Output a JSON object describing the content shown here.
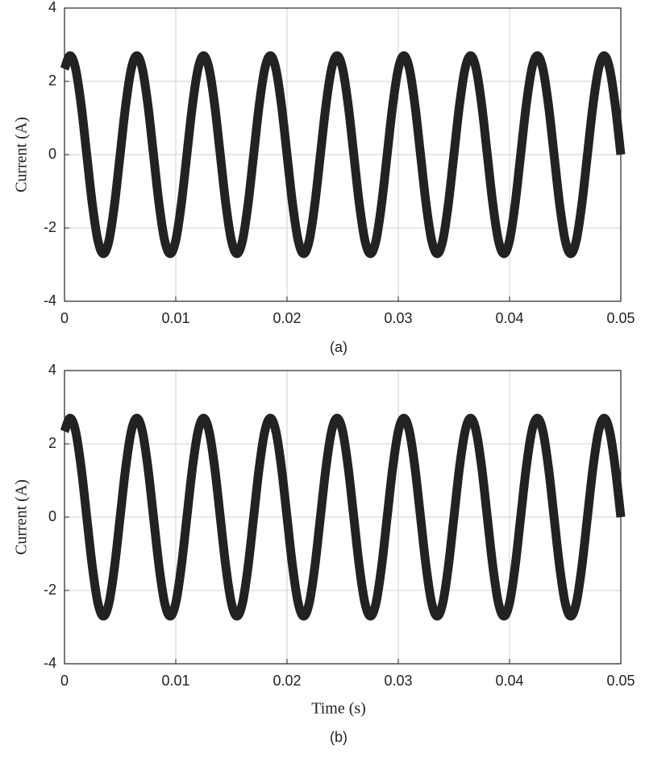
{
  "chart_data": [
    {
      "type": "line",
      "caption": "(a)",
      "y_label": "Current (A)",
      "xlim": [
        0,
        0.05
      ],
      "xticks": [
        0,
        0.01,
        0.02,
        0.03,
        0.04,
        0.05
      ],
      "ylim": [
        -4,
        4
      ],
      "yticks": [
        -4,
        -2,
        0,
        2,
        4
      ],
      "grid": true,
      "color": "#222222",
      "x": [
        0,
        0.0005,
        0.001,
        0.0015,
        0.002,
        0.0025,
        0.003,
        0.0035,
        0.004,
        0.0045,
        0.005,
        0.0055,
        0.006,
        0.0065,
        0.007,
        0.0075,
        0.008,
        0.0085,
        0.009,
        0.0095,
        0.01,
        0.0105,
        0.011,
        0.0115,
        0.012,
        0.0125,
        0.013,
        0.0135,
        0.014,
        0.0145,
        0.015,
        0.0155,
        0.016,
        0.0165,
        0.017,
        0.0175,
        0.018,
        0.0185,
        0.019,
        0.0195,
        0.02,
        0.0205,
        0.021,
        0.0215,
        0.022,
        0.0225,
        0.023,
        0.0235,
        0.024,
        0.0245,
        0.025,
        0.0255,
        0.026,
        0.0265,
        0.027,
        0.0275,
        0.028,
        0.0285,
        0.029,
        0.0295,
        0.03,
        0.0305,
        0.031,
        0.0315,
        0.032,
        0.0325,
        0.033,
        0.0335,
        0.034,
        0.0345,
        0.035,
        0.0355,
        0.036,
        0.0365,
        0.037,
        0.0375,
        0.038,
        0.0385,
        0.039,
        0.0395,
        0.04,
        0.0405,
        0.041,
        0.0415,
        0.042,
        0.0425,
        0.043,
        0.0435,
        0.044,
        0.0445,
        0.045,
        0.0455,
        0.046,
        0.0465,
        0.047,
        0.0475,
        0.048,
        0.0485,
        0.049,
        0.0495,
        0.05
      ],
      "values": [
        2.34,
        2.7,
        2.34,
        1.35,
        0,
        -1.35,
        -2.34,
        -2.7,
        -2.34,
        -1.35,
        0,
        1.35,
        2.34,
        2.7,
        2.34,
        1.35,
        0,
        -1.35,
        -2.34,
        -2.7,
        -2.34,
        -1.35,
        0,
        1.35,
        2.34,
        2.7,
        2.34,
        1.35,
        0,
        -1.35,
        -2.34,
        -2.7,
        -2.34,
        -1.35,
        0,
        1.35,
        2.34,
        2.7,
        2.34,
        1.35,
        0,
        -1.35,
        -2.34,
        -2.7,
        -2.34,
        -1.35,
        0,
        1.35,
        2.34,
        2.7,
        2.34,
        1.35,
        0,
        -1.35,
        -2.34,
        -2.7,
        -2.34,
        -1.35,
        0,
        1.35,
        2.34,
        2.7,
        2.34,
        1.35,
        0,
        -1.35,
        -2.34,
        -2.7,
        -2.34,
        -1.35,
        0,
        1.35,
        2.34,
        2.7,
        2.34,
        1.35,
        0,
        -1.35,
        -2.34,
        -2.7,
        -2.34,
        -1.35,
        0,
        1.35,
        2.34,
        2.7,
        2.34,
        1.35,
        0,
        -1.35,
        -2.34,
        -2.7,
        -2.34,
        -1.35,
        0,
        1.35,
        2.34,
        2.7,
        2.34,
        1.35,
        0
      ]
    },
    {
      "type": "line",
      "caption": "(b)",
      "y_label": "Current (A)",
      "x_label": "Time (s)",
      "xlim": [
        0,
        0.05
      ],
      "xticks": [
        0,
        0.01,
        0.02,
        0.03,
        0.04,
        0.05
      ],
      "ylim": [
        -4,
        4
      ],
      "yticks": [
        -4,
        -2,
        0,
        2,
        4
      ],
      "grid": true,
      "color": "#222222",
      "x": [
        0,
        0.0005,
        0.001,
        0.0015,
        0.002,
        0.0025,
        0.003,
        0.0035,
        0.004,
        0.0045,
        0.005,
        0.0055,
        0.006,
        0.0065,
        0.007,
        0.0075,
        0.008,
        0.0085,
        0.009,
        0.0095,
        0.01,
        0.0105,
        0.011,
        0.0115,
        0.012,
        0.0125,
        0.013,
        0.0135,
        0.014,
        0.0145,
        0.015,
        0.0155,
        0.016,
        0.0165,
        0.017,
        0.0175,
        0.018,
        0.0185,
        0.019,
        0.0195,
        0.02,
        0.0205,
        0.021,
        0.0215,
        0.022,
        0.0225,
        0.023,
        0.0235,
        0.024,
        0.0245,
        0.025,
        0.0255,
        0.026,
        0.0265,
        0.027,
        0.0275,
        0.028,
        0.0285,
        0.029,
        0.0295,
        0.03,
        0.0305,
        0.031,
        0.0315,
        0.032,
        0.0325,
        0.033,
        0.0335,
        0.034,
        0.0345,
        0.035,
        0.0355,
        0.036,
        0.0365,
        0.037,
        0.0375,
        0.038,
        0.0385,
        0.039,
        0.0395,
        0.04,
        0.0405,
        0.041,
        0.0415,
        0.042,
        0.0425,
        0.043,
        0.0435,
        0.044,
        0.0445,
        0.045,
        0.0455,
        0.046,
        0.0465,
        0.047,
        0.0475,
        0.048,
        0.0485,
        0.049,
        0.0495,
        0.05
      ],
      "values": [
        2.34,
        2.7,
        2.34,
        1.35,
        0,
        -1.35,
        -2.34,
        -2.7,
        -2.34,
        -1.35,
        0,
        1.35,
        2.34,
        2.7,
        2.34,
        1.35,
        0,
        -1.35,
        -2.34,
        -2.7,
        -2.34,
        -1.35,
        0,
        1.35,
        2.34,
        2.7,
        2.34,
        1.35,
        0,
        -1.35,
        -2.34,
        -2.7,
        -2.34,
        -1.35,
        0,
        1.35,
        2.34,
        2.7,
        2.34,
        1.35,
        0,
        -1.35,
        -2.34,
        -2.7,
        -2.34,
        -1.35,
        0,
        1.35,
        2.34,
        2.7,
        2.34,
        1.35,
        0,
        -1.35,
        -2.34,
        -2.7,
        -2.34,
        -1.35,
        0,
        1.35,
        2.34,
        2.7,
        2.34,
        1.35,
        0,
        -1.35,
        -2.34,
        -2.7,
        -2.34,
        -1.35,
        0,
        1.35,
        2.34,
        2.7,
        2.34,
        1.35,
        0,
        -1.35,
        -2.34,
        -2.7,
        -2.34,
        -1.35,
        0,
        1.35,
        2.34,
        2.7,
        2.34,
        1.35,
        0,
        -1.35,
        -2.34,
        -2.7,
        -2.34,
        -1.35,
        0,
        1.35,
        2.34,
        2.7,
        2.34,
        1.35,
        0
      ]
    }
  ]
}
